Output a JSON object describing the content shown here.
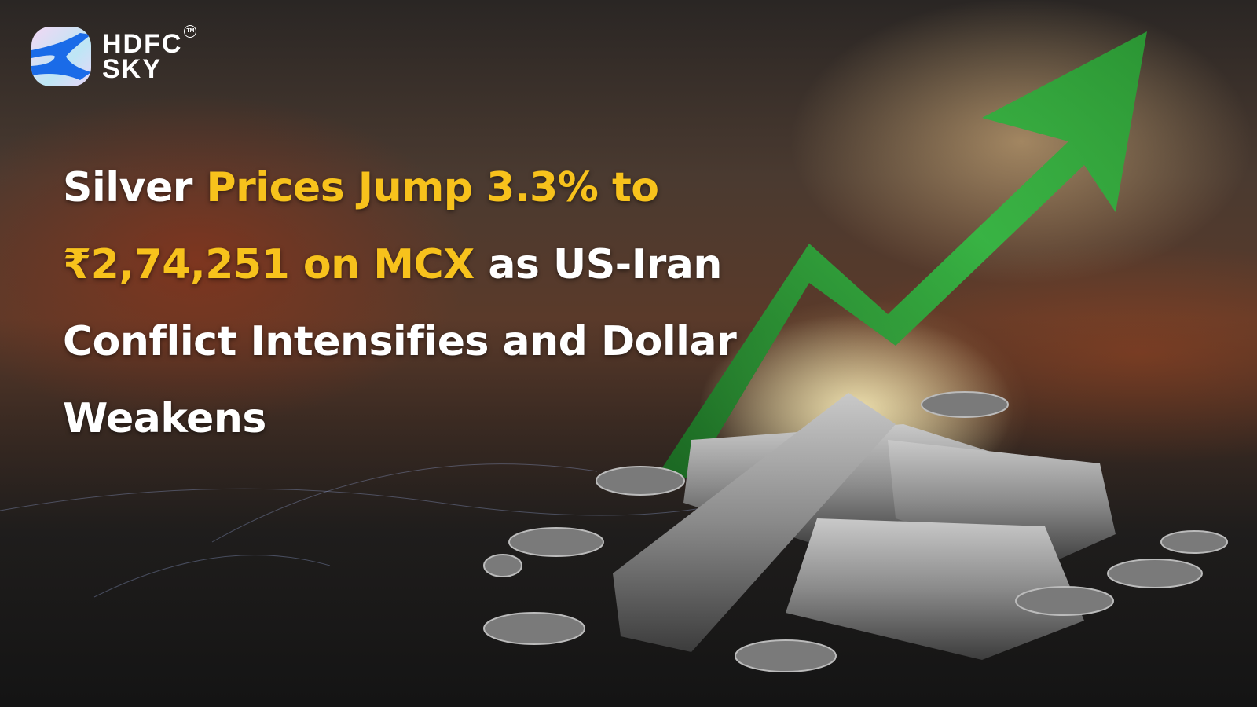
{
  "brand": {
    "name_line1": "HDFC",
    "name_line2": "SKY",
    "trademark": "TM"
  },
  "headline": {
    "line1_white": "Silver ",
    "line1_highlight": "Prices Jump 3.3% to",
    "line2_highlight": "₹2,74,251 on MCX",
    "line2_white": " as US-Iran",
    "line3": "Conflict Intensifies and Dollar",
    "line4": "Weakens"
  },
  "colors": {
    "highlight": "#f7c21c",
    "text": "#ffffff",
    "arrow": "#2fa33a"
  },
  "icons": {
    "hero": "upward-green-arrow-over-silver-bars"
  }
}
